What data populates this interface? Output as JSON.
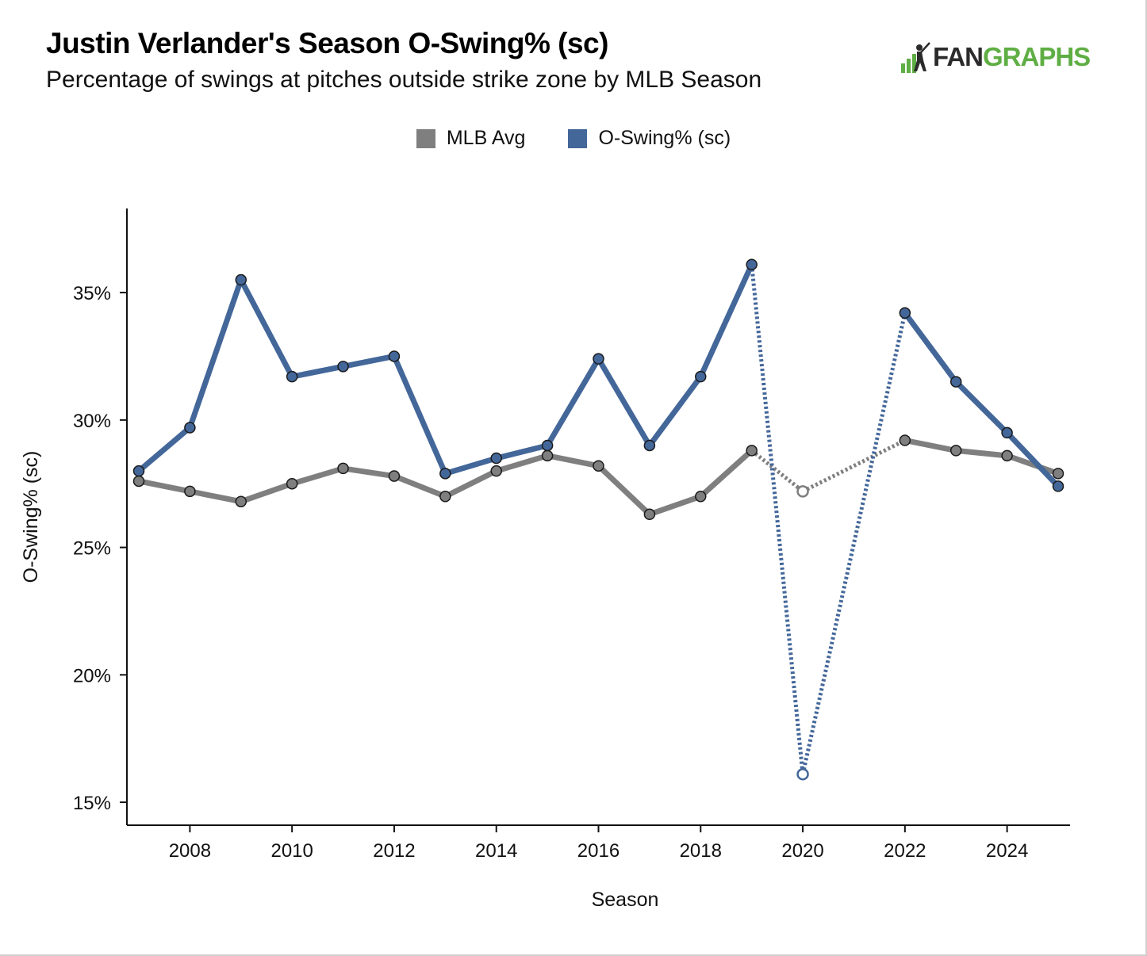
{
  "header": {
    "title": "Justin Verlander's Season O-Swing% (sc)",
    "subtitle": "Percentage of swings at pitches outside strike zone by MLB Season",
    "logo_fan": "FAN",
    "logo_graphs": "GRAPHS"
  },
  "colors": {
    "player": "#44679a",
    "league": "#7f7f7f",
    "logo_green": "#5fae44"
  },
  "chart_data": {
    "type": "line",
    "title": "Justin Verlander's Season O-Swing% (sc)",
    "subtitle": "Percentage of swings at pitches outside strike zone by MLB Season",
    "xlabel": "Season",
    "ylabel": "O-Swing% (sc)",
    "xlim": [
      2007,
      2025
    ],
    "ylim": [
      14.1,
      38.3
    ],
    "x_ticks": [
      2008,
      2010,
      2012,
      2014,
      2016,
      2018,
      2020,
      2022,
      2024
    ],
    "y_ticks": [
      15,
      20,
      25,
      30,
      35
    ],
    "y_tick_labels": [
      "15%",
      "20%",
      "25%",
      "30%",
      "35%"
    ],
    "legend_position": "top-center",
    "grid": false,
    "series": [
      {
        "name": "MLB Avg",
        "color": "#7f7f7f",
        "points": [
          {
            "x": 2007,
            "y": 27.6
          },
          {
            "x": 2008,
            "y": 27.2
          },
          {
            "x": 2009,
            "y": 26.8
          },
          {
            "x": 2010,
            "y": 27.5
          },
          {
            "x": 2011,
            "y": 28.1
          },
          {
            "x": 2012,
            "y": 27.8
          },
          {
            "x": 2013,
            "y": 27.0
          },
          {
            "x": 2014,
            "y": 28.0
          },
          {
            "x": 2015,
            "y": 28.6
          },
          {
            "x": 2016,
            "y": 28.2
          },
          {
            "x": 2017,
            "y": 26.3
          },
          {
            "x": 2018,
            "y": 27.0
          },
          {
            "x": 2019,
            "y": 28.8
          },
          {
            "x": 2020,
            "y": 27.2,
            "open": true
          },
          {
            "x": 2022,
            "y": 29.2
          },
          {
            "x": 2023,
            "y": 28.8
          },
          {
            "x": 2024,
            "y": 28.6
          },
          {
            "x": 2025,
            "y": 27.9
          }
        ]
      },
      {
        "name": "O-Swing% (sc)",
        "color": "#44679a",
        "points": [
          {
            "x": 2007,
            "y": 28.0
          },
          {
            "x": 2008,
            "y": 29.7
          },
          {
            "x": 2009,
            "y": 35.5
          },
          {
            "x": 2010,
            "y": 31.7
          },
          {
            "x": 2011,
            "y": 32.1
          },
          {
            "x": 2012,
            "y": 32.5
          },
          {
            "x": 2013,
            "y": 27.9
          },
          {
            "x": 2014,
            "y": 28.5
          },
          {
            "x": 2015,
            "y": 29.0
          },
          {
            "x": 2016,
            "y": 32.4
          },
          {
            "x": 2017,
            "y": 29.0
          },
          {
            "x": 2018,
            "y": 31.7
          },
          {
            "x": 2019,
            "y": 36.1
          },
          {
            "x": 2020,
            "y": 16.1,
            "open": true
          },
          {
            "x": 2022,
            "y": 34.2
          },
          {
            "x": 2023,
            "y": 31.5
          },
          {
            "x": 2024,
            "y": 29.5
          },
          {
            "x": 2025,
            "y": 27.4
          }
        ]
      }
    ]
  }
}
